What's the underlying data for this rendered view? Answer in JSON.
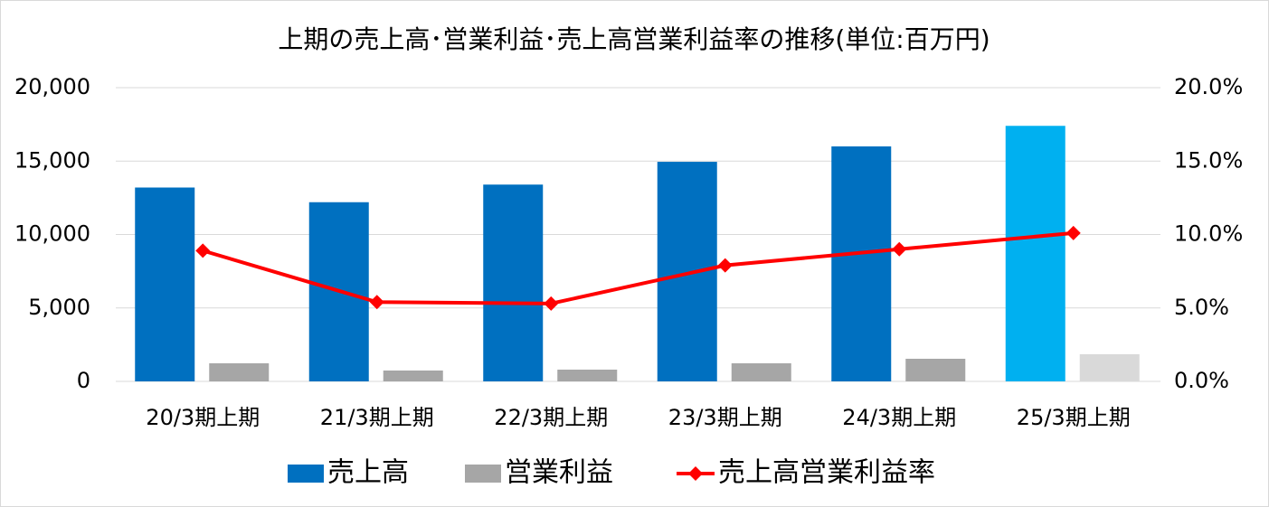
{
  "chart_data": {
    "type": "bar",
    "title": "上期の売上高･営業利益･売上高営業利益率の推移(単位:百万円)",
    "categories": [
      "20/3期上期",
      "21/3期上期",
      "22/3期上期",
      "23/3期上期",
      "24/3期上期",
      "25/3期上期"
    ],
    "series": [
      {
        "name": "売上高",
        "type": "bar",
        "color": "#0070c0",
        "colors": [
          "#0070c0",
          "#0070c0",
          "#0070c0",
          "#0070c0",
          "#0070c0",
          "#00b0f0"
        ],
        "values": [
          13200,
          12200,
          13400,
          14950,
          16000,
          17400
        ]
      },
      {
        "name": "営業利益",
        "type": "bar",
        "color": "#a6a6a6",
        "colors": [
          "#a6a6a6",
          "#a6a6a6",
          "#a6a6a6",
          "#a6a6a6",
          "#a6a6a6",
          "#d9d9d9"
        ],
        "values": [
          1230,
          740,
          800,
          1230,
          1540,
          1850
        ]
      },
      {
        "name": "売上高営業利益率",
        "type": "line",
        "axis": "y2",
        "color": "#ff0000",
        "values": [
          8.9,
          5.4,
          5.3,
          7.9,
          9.0,
          10.1
        ]
      }
    ],
    "ylim": [
      0,
      20000
    ],
    "yticks": [
      0,
      {
        "value": 5000,
        "label": "5,000"
      },
      {
        "value": 10000,
        "label": "10,000"
      },
      {
        "value": 15000,
        "label": "15,000"
      },
      {
        "value": 20000,
        "label": "20,000"
      }
    ],
    "y2lim": [
      0,
      20
    ],
    "y2ticks": [
      {
        "value": 0,
        "label": "0.0%"
      },
      {
        "value": 5,
        "label": "5.0%"
      },
      {
        "value": 10,
        "label": "10.0%"
      },
      {
        "value": 15,
        "label": "15.0%"
      },
      {
        "value": 20,
        "label": "20.0%"
      }
    ],
    "grid": true,
    "legend": "bottom"
  }
}
